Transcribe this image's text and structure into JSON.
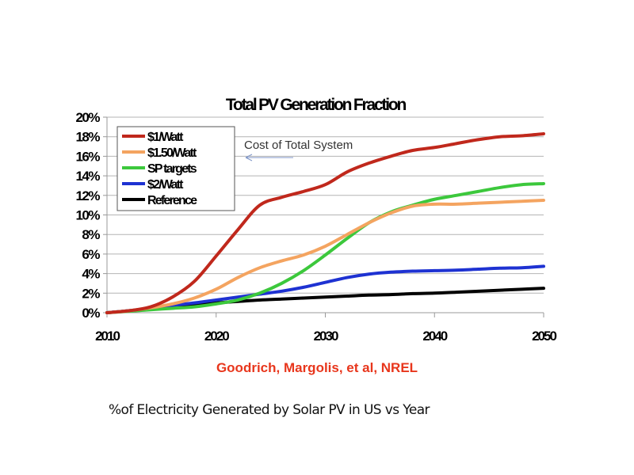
{
  "chart_data": {
    "type": "line",
    "title": "Total PV Generation Fraction",
    "xlabel": "",
    "ylabel": "",
    "x_ticks": [
      "2010",
      "2020",
      "2030",
      "2040",
      "2050"
    ],
    "y_ticks": [
      "0%",
      "2%",
      "4%",
      "6%",
      "8%",
      "10%",
      "12%",
      "14%",
      "16%",
      "18%",
      "20%"
    ],
    "xlim": [
      2010,
      2050
    ],
    "ylim": [
      0,
      20
    ],
    "grid": "horizontal",
    "legend_position": "top-left",
    "x": [
      2010,
      2012,
      2014,
      2016,
      2018,
      2020,
      2022,
      2024,
      2026,
      2028,
      2030,
      2032,
      2034,
      2036,
      2038,
      2040,
      2042,
      2044,
      2046,
      2048,
      2050
    ],
    "series": [
      {
        "name": "$1/Watt",
        "color": "#c0281c",
        "values": [
          0.0,
          0.2,
          0.6,
          1.6,
          3.2,
          5.8,
          8.5,
          11.0,
          11.8,
          12.4,
          13.1,
          14.4,
          15.3,
          16.0,
          16.6,
          16.9,
          17.3,
          17.7,
          18.0,
          18.1,
          18.3
        ]
      },
      {
        "name": "$1.50/Watt",
        "color": "#f4a460",
        "values": [
          0.0,
          0.2,
          0.5,
          0.9,
          1.5,
          2.4,
          3.6,
          4.6,
          5.3,
          5.9,
          6.8,
          8.0,
          9.2,
          10.2,
          10.9,
          11.1,
          11.1,
          11.2,
          11.3,
          11.4,
          11.5
        ]
      },
      {
        "name": "SP targets",
        "color": "#3cc83c",
        "values": [
          0.0,
          0.15,
          0.3,
          0.45,
          0.6,
          0.9,
          1.3,
          2.0,
          3.0,
          4.3,
          5.9,
          7.6,
          9.2,
          10.3,
          11.0,
          11.6,
          12.0,
          12.4,
          12.8,
          13.1,
          13.2
        ]
      },
      {
        "name": "$2/Watt",
        "color": "#1e32d2",
        "values": [
          0.0,
          0.2,
          0.45,
          0.75,
          1.0,
          1.3,
          1.6,
          1.9,
          2.2,
          2.6,
          3.1,
          3.6,
          3.95,
          4.15,
          4.25,
          4.3,
          4.35,
          4.45,
          4.55,
          4.6,
          4.75
        ]
      },
      {
        "name": "Reference",
        "color": "#000000",
        "values": [
          0.0,
          0.2,
          0.4,
          0.6,
          0.8,
          1.0,
          1.15,
          1.3,
          1.4,
          1.5,
          1.6,
          1.7,
          1.8,
          1.85,
          1.95,
          2.0,
          2.1,
          2.2,
          2.3,
          2.4,
          2.5
        ]
      }
    ],
    "annotations": [
      {
        "text": "Cost of Total System",
        "points_to": "legend",
        "arrow": "left"
      }
    ]
  },
  "source_credit": "Goodrich, Margolis, et al, NREL",
  "caption": "%of Electricity Generated by Solar PV in US  vs Year"
}
